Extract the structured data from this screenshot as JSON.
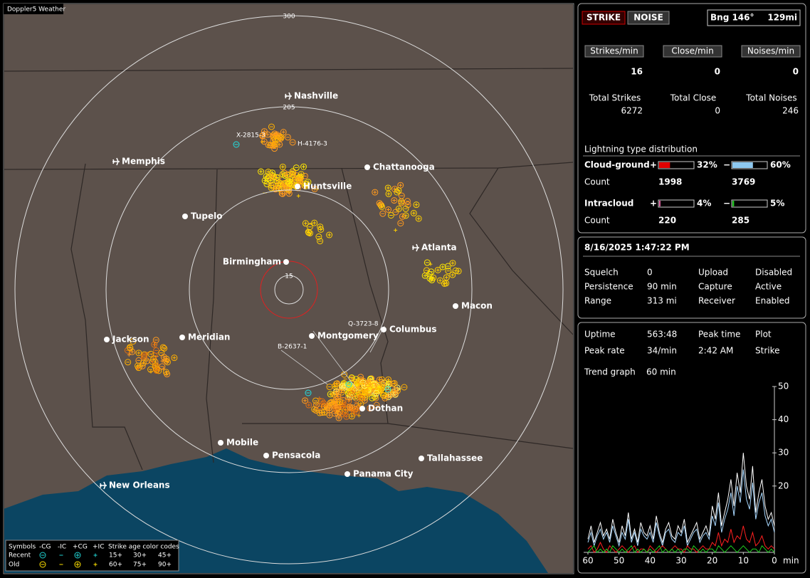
{
  "map": {
    "title": "Doppler5 Weather",
    "rings": [
      300,
      205,
      15
    ],
    "cities": [
      "Nashville",
      "Memphis",
      "Chattanooga",
      "Huntsville",
      "Tupelo",
      "Atlanta",
      "Birmingham",
      "Macon",
      "Jackson",
      "Meridian",
      "Montgomery",
      "Columbus",
      "Dothan",
      "Mobile",
      "Pensacola",
      "Tallahassee",
      "Panama City",
      "New Orleans"
    ],
    "strike_labels": [
      "X-2815-3",
      "H-4176-3",
      "Q-3723-8",
      "B-2637-1"
    ],
    "legend": {
      "headers": [
        "Symbols",
        "-CG",
        "-IC",
        "+CG",
        "+IC",
        "Strike age color codes"
      ],
      "rows": [
        {
          "label": "Recent",
          "ages": [
            "15+",
            "30+",
            "45+"
          ]
        },
        {
          "label": "Old",
          "ages": [
            "60+",
            "75+",
            "90+"
          ]
        }
      ]
    }
  },
  "status": {
    "strike_button": "STRIKE",
    "noise_button": "NOISE",
    "bearing": "Bng 146°",
    "distance": "129mi",
    "rates": [
      {
        "label": "Strikes/min",
        "value": 16
      },
      {
        "label": "Close/min",
        "value": 0
      },
      {
        "label": "Noises/min",
        "value": 0
      }
    ],
    "totals": [
      {
        "label": "Total Strikes",
        "value": 6272
      },
      {
        "label": "Total Close",
        "value": 0
      },
      {
        "label": "Total Noises",
        "value": 246
      }
    ]
  },
  "distribution": {
    "title": "Lightning type distribution",
    "count_label": "Count",
    "types": [
      {
        "name": "Cloud-ground",
        "positive": {
          "sign": "+",
          "percent": 32,
          "percent_label": "32%",
          "count": 1998,
          "color": "#e00000"
        },
        "negative": {
          "sign": "−",
          "percent": 60,
          "percent_label": "60%",
          "count": 3769,
          "color": "#8ec8f0"
        }
      },
      {
        "name": "Intracloud",
        "positive": {
          "sign": "+",
          "percent": 4,
          "percent_label": "4%",
          "count": 220,
          "color": "#e060a0"
        },
        "negative": {
          "sign": "−",
          "percent": 5,
          "percent_label": "5%",
          "count": 285,
          "color": "#20c020"
        }
      }
    ]
  },
  "settings": {
    "datetime": "8/16/2025 1:47:22 PM",
    "rows": [
      [
        "Squelch",
        "0",
        "Upload",
        "Disabled"
      ],
      [
        "Persistence",
        "90 min",
        "Capture",
        "Active"
      ],
      [
        "Range",
        "313 mi",
        "Receiver",
        "Enabled"
      ]
    ]
  },
  "stats": {
    "rows": [
      [
        "Uptime",
        "563:48",
        "Peak time",
        "Plot"
      ],
      [
        "Peak rate",
        "34/min",
        "2:42 AM",
        "Strike"
      ]
    ],
    "trend_label": "Trend graph",
    "trend_value": "60 min"
  },
  "trend_chart": {
    "type": "line",
    "x": [
      60,
      59,
      58,
      57,
      56,
      55,
      54,
      53,
      52,
      51,
      50,
      49,
      48,
      47,
      46,
      45,
      44,
      43,
      42,
      41,
      40,
      39,
      38,
      37,
      36,
      35,
      34,
      33,
      32,
      31,
      30,
      29,
      28,
      27,
      26,
      25,
      24,
      23,
      22,
      21,
      20,
      19,
      18,
      17,
      16,
      15,
      14,
      13,
      12,
      11,
      10,
      9,
      8,
      7,
      6,
      5,
      4,
      3,
      2,
      1,
      0
    ],
    "xlim": [
      60,
      0
    ],
    "xticks": [
      60,
      50,
      40,
      30,
      20,
      10,
      0
    ],
    "xlabel": "min",
    "ylim": [
      0,
      50
    ],
    "yticks": [
      20,
      30,
      40,
      50
    ],
    "series": [
      {
        "color": "#ffffff",
        "values": [
          4,
          8,
          3,
          6,
          9,
          5,
          7,
          4,
          10,
          6,
          3,
          8,
          5,
          12,
          4,
          7,
          3,
          9,
          6,
          5,
          8,
          4,
          11,
          6,
          3,
          7,
          9,
          5,
          4,
          8,
          6,
          10,
          3,
          5,
          7,
          9,
          4,
          6,
          8,
          5,
          14,
          10,
          18,
          8,
          12,
          16,
          22,
          14,
          24,
          18,
          30,
          20,
          16,
          26,
          12,
          18,
          22,
          14,
          10,
          12,
          8
        ]
      },
      {
        "color": "#a8d8ff",
        "values": [
          3,
          6,
          2,
          5,
          7,
          4,
          6,
          3,
          8,
          5,
          2,
          6,
          4,
          10,
          3,
          6,
          2,
          7,
          5,
          4,
          6,
          3,
          9,
          5,
          2,
          6,
          7,
          4,
          3,
          6,
          5,
          8,
          2,
          4,
          6,
          7,
          3,
          5,
          6,
          4,
          11,
          8,
          15,
          6,
          10,
          13,
          18,
          11,
          20,
          15,
          25,
          16,
          13,
          21,
          10,
          15,
          18,
          11,
          8,
          10,
          6
        ]
      },
      {
        "color": "#ff2020",
        "values": [
          1,
          2,
          0,
          1,
          3,
          1,
          0,
          2,
          1,
          0,
          1,
          2,
          1,
          0,
          1,
          2,
          0,
          1,
          1,
          0,
          2,
          1,
          0,
          1,
          2,
          1,
          0,
          1,
          2,
          1,
          1,
          0,
          2,
          1,
          1,
          0,
          1,
          2,
          1,
          1,
          3,
          2,
          6,
          2,
          4,
          3,
          7,
          3,
          5,
          4,
          8,
          4,
          3,
          6,
          2,
          3,
          5,
          2,
          1,
          2,
          1
        ]
      },
      {
        "color": "#20d020",
        "values": [
          0,
          1,
          2,
          0,
          1,
          0,
          1,
          0,
          2,
          1,
          0,
          1,
          0,
          1,
          2,
          0,
          1,
          0,
          1,
          0,
          1,
          0,
          1,
          2,
          0,
          1,
          0,
          1,
          0,
          1,
          0,
          1,
          1,
          0,
          2,
          1,
          0,
          1,
          0,
          1,
          1,
          0,
          2,
          1,
          0,
          1,
          2,
          1,
          0,
          1,
          2,
          1,
          0,
          1,
          1,
          0,
          2,
          1,
          0,
          1,
          0
        ]
      }
    ]
  }
}
